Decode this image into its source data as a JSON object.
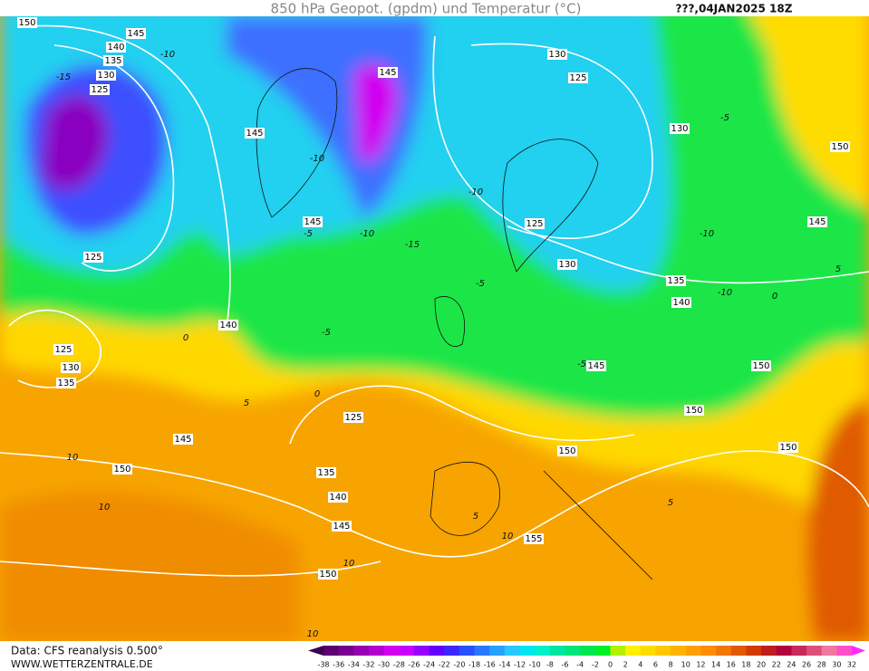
{
  "header": {
    "title": "850 hPa Geopot. (gpdm) und Temperatur (°C)",
    "run": "???,04JAN2025 18Z"
  },
  "footer": {
    "source": "Data: CFS reanalysis 0.500°",
    "website": "WWW.WETTERZENTRALE.DE"
  },
  "contour_labels": {
    "geopotential": [
      150,
      145,
      140,
      135,
      130,
      125,
      145,
      130,
      125,
      145,
      130,
      150,
      145,
      125,
      145,
      125,
      130,
      135,
      140,
      140,
      125,
      130,
      135,
      145,
      150,
      150,
      125,
      145,
      150,
      150,
      150,
      135,
      140,
      145,
      155,
      150
    ],
    "temperature": [
      -10,
      -15,
      -10,
      -5,
      -10,
      -15,
      -10,
      -5,
      -10,
      -5,
      0,
      -5,
      0,
      5,
      10,
      10,
      5,
      10,
      -5,
      5,
      10,
      10,
      -10,
      0,
      5
    ]
  },
  "colorbar": {
    "labels": [
      -38,
      -36,
      -34,
      -32,
      -30,
      -28,
      -26,
      -24,
      -22,
      -20,
      -18,
      -16,
      -14,
      -12,
      -10,
      -8,
      -6,
      -4,
      -2,
      0,
      2,
      4,
      6,
      8,
      10,
      12,
      14,
      16,
      18,
      20,
      22,
      24,
      26,
      28,
      30,
      32
    ],
    "colors": [
      "#3c0050",
      "#5a0070",
      "#780090",
      "#9600b0",
      "#b400d0",
      "#d200f0",
      "#c800ff",
      "#9600ff",
      "#6400ff",
      "#3c28ff",
      "#2850ff",
      "#2878ff",
      "#28a0ff",
      "#28c8ff",
      "#00e6f0",
      "#00f0c8",
      "#00e6a0",
      "#00e678",
      "#00e650",
      "#00f028",
      "#b4f000",
      "#fff000",
      "#ffdc00",
      "#ffc800",
      "#ffb400",
      "#ffa000",
      "#ff8c00",
      "#f07800",
      "#e05a00",
      "#d03c00",
      "#c01e1e",
      "#b4003c",
      "#c8285a",
      "#dc5078",
      "#f078a0",
      "#ff50c8",
      "#ff28ff"
    ]
  }
}
